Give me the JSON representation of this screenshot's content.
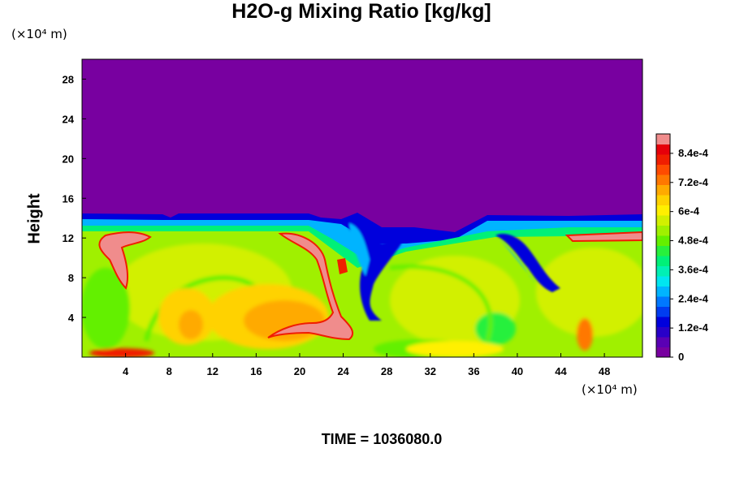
{
  "chart_data": {
    "type": "heatmap",
    "title": "H2O-g Mixing Ratio [kg/kg]",
    "ylabel": "Height",
    "x_unit_label": "(×10⁴ m)",
    "y_unit_label": "(×10⁴ m)",
    "footer": "TIME = 1036080.0",
    "xlim": [
      0,
      51.5
    ],
    "ylim": [
      0,
      30
    ],
    "x_ticks": [
      4,
      8,
      12,
      16,
      20,
      24,
      28,
      32,
      36,
      40,
      44,
      48
    ],
    "y_ticks": [
      4,
      8,
      12,
      16,
      20,
      24,
      28
    ],
    "x_tick_labels": [
      "4",
      "8",
      "12",
      "16",
      "20",
      "24",
      "28",
      "32",
      "36",
      "40",
      "44",
      "48"
    ],
    "y_tick_labels": [
      "4",
      "8",
      "12",
      "16",
      "20",
      "24",
      "28"
    ],
    "colorbar": {
      "min": 0,
      "max": 0.00092,
      "tick_values": [
        0,
        0.00012,
        0.00024,
        0.00036,
        0.00048,
        0.0006,
        0.00072,
        0.00084
      ],
      "tick_labels": [
        "0",
        "1.2e-4",
        "2.4e-4",
        "3.6e-4",
        "4.8e-4",
        "6e-4",
        "7.2e-4",
        "8.4e-4"
      ],
      "colors": [
        "#7800a0",
        "#5a00b4",
        "#2800c8",
        "#0000dc",
        "#003cf0",
        "#0078ff",
        "#00b4ff",
        "#00e6f0",
        "#00f0b4",
        "#00f078",
        "#28f03c",
        "#64f000",
        "#a0f000",
        "#d2f000",
        "#fff000",
        "#ffd200",
        "#ffaa00",
        "#ff7800",
        "#ff4b00",
        "#f01e00",
        "#e6000a",
        "#f08c8c"
      ]
    },
    "regions": {
      "dry_top_boundary_height": 14,
      "moist_layer": [
        0,
        12.5
      ],
      "features": [
        {
          "name": "saturated plume left",
          "x": [
            2,
            7
          ],
          "y": [
            6,
            12.3
          ]
        },
        {
          "name": "saturated streak center",
          "x": [
            19,
            27
          ],
          "y": [
            1.5,
            12
          ]
        },
        {
          "name": "dry intrusion center",
          "x": [
            25,
            32
          ],
          "y": [
            5,
            14
          ]
        },
        {
          "name": "dry intrusion right",
          "x": [
            39,
            44
          ],
          "y": [
            6,
            14
          ]
        },
        {
          "name": "saturated cap right",
          "x": [
            45,
            51.5
          ],
          "y": [
            11.5,
            12.3
          ]
        }
      ]
    }
  }
}
